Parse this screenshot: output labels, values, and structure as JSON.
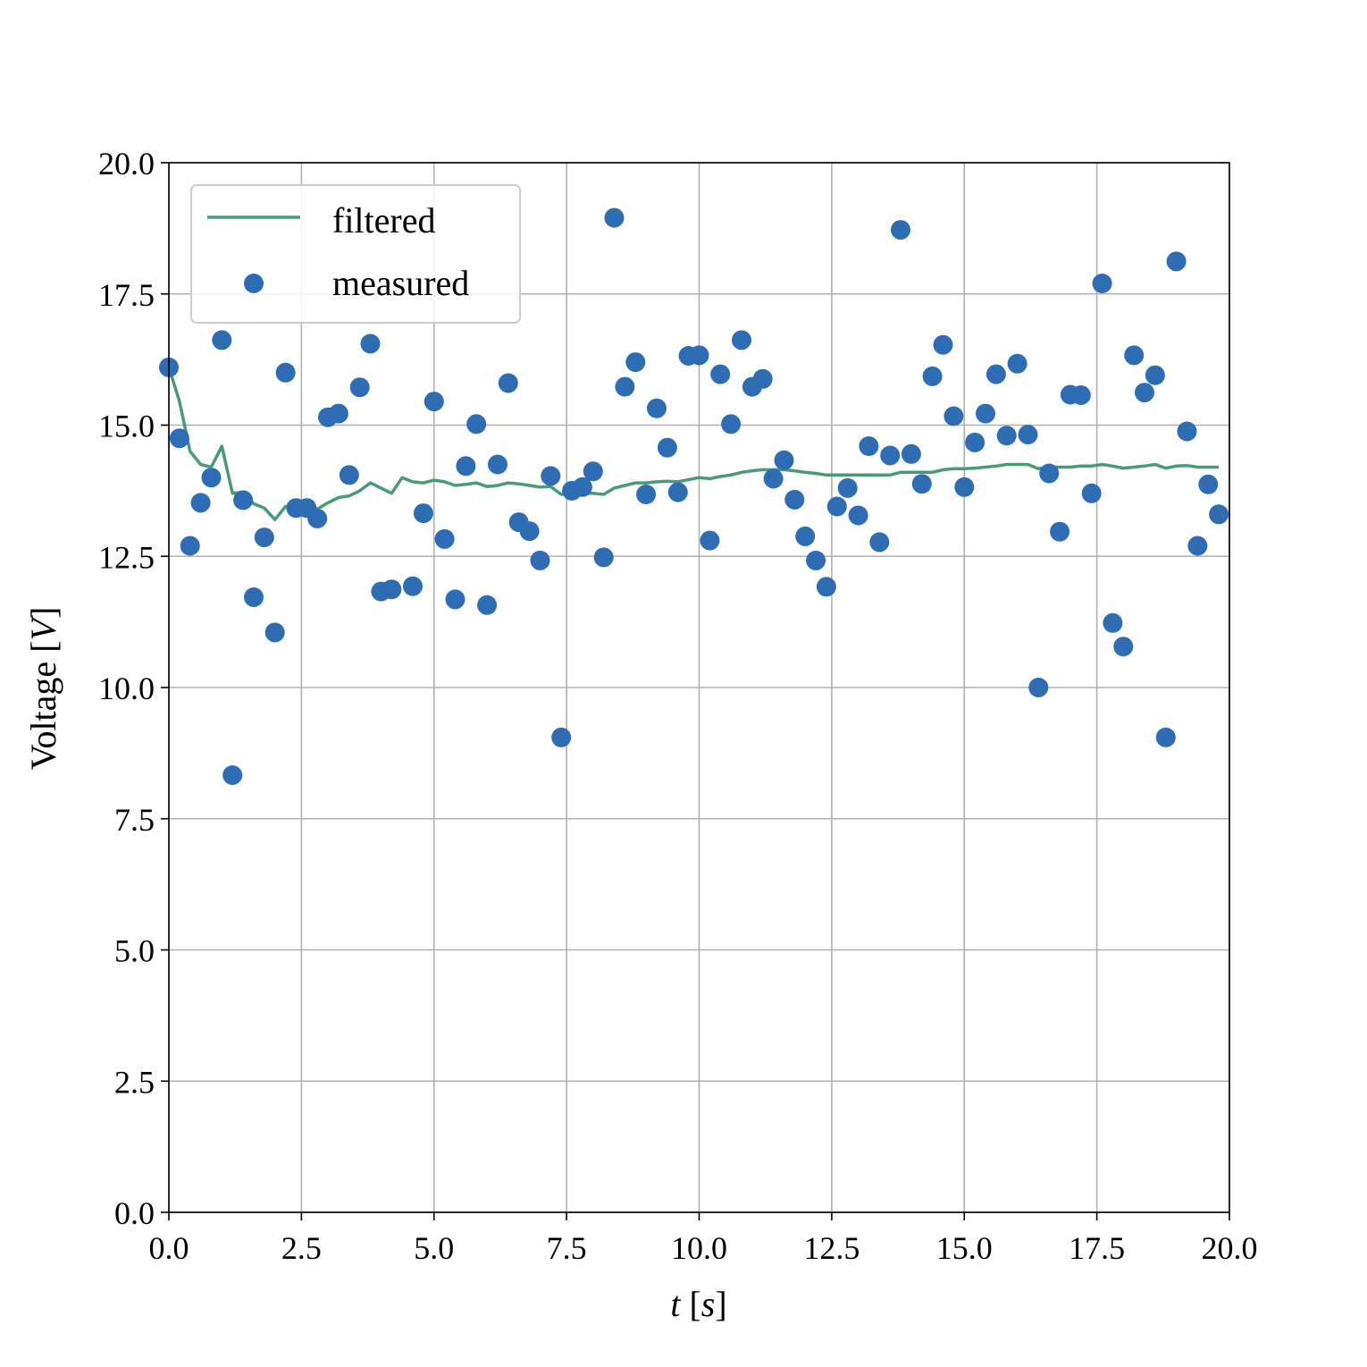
{
  "colors": {
    "filtered": "#4a9a78",
    "measured": "#2e6db4",
    "grid": "#b0b0b0",
    "axis": "#000000"
  },
  "legend": {
    "filtered_label": "filtered",
    "measured_label": "measured",
    "placement": "upper-left"
  },
  "chart_data": {
    "type": "line+scatter",
    "xlabel": "t [s]",
    "xlabel_var": "t",
    "xlabel_unit": "s",
    "ylabel": "Voltage [V]",
    "ylabel_text": "Voltage",
    "ylabel_unit": "V",
    "xlim": [
      0,
      20
    ],
    "ylim": [
      0,
      20
    ],
    "grid": true,
    "x_ticks": [
      "0.0",
      "2.5",
      "5.0",
      "7.5",
      "10.0",
      "12.5",
      "15.0",
      "17.5",
      "20.0"
    ],
    "y_ticks": [
      "0.0",
      "2.5",
      "5.0",
      "7.5",
      "10.0",
      "12.5",
      "15.0",
      "17.5",
      "20.0"
    ],
    "series": [
      {
        "name": "filtered",
        "kind": "line",
        "x": [
          0.0,
          0.2,
          0.4,
          0.6,
          0.8,
          1.0,
          1.2,
          1.4,
          1.6,
          1.8,
          2.0,
          2.2,
          2.4,
          2.6,
          2.8,
          3.0,
          3.2,
          3.4,
          3.6,
          3.8,
          4.0,
          4.2,
          4.4,
          4.6,
          4.8,
          5.0,
          5.2,
          5.4,
          5.6,
          5.8,
          6.0,
          6.2,
          6.4,
          6.6,
          6.8,
          7.0,
          7.2,
          7.4,
          7.6,
          7.8,
          8.0,
          8.2,
          8.4,
          8.6,
          8.8,
          9.0,
          9.2,
          9.4,
          9.6,
          9.8,
          10.0,
          10.2,
          10.4,
          10.6,
          10.8,
          11.0,
          11.2,
          11.4,
          11.6,
          11.8,
          12.0,
          12.2,
          12.4,
          12.6,
          12.8,
          13.0,
          13.2,
          13.4,
          13.6,
          13.8,
          14.0,
          14.2,
          14.4,
          14.6,
          14.8,
          15.0,
          15.2,
          15.4,
          15.6,
          15.8,
          16.0,
          16.2,
          16.4,
          16.6,
          16.8,
          17.0,
          17.2,
          17.4,
          17.6,
          17.8,
          18.0,
          18.2,
          18.4,
          18.6,
          18.8,
          19.0,
          19.2,
          19.4,
          19.6,
          19.8
        ],
        "y": [
          16.1,
          15.45,
          14.5,
          14.25,
          14.2,
          14.6,
          13.7,
          13.72,
          13.5,
          13.42,
          13.2,
          13.45,
          13.45,
          13.45,
          13.4,
          13.52,
          13.62,
          13.65,
          13.75,
          13.9,
          13.8,
          13.7,
          14.0,
          13.92,
          13.9,
          13.95,
          13.92,
          13.85,
          13.87,
          13.9,
          13.83,
          13.85,
          13.9,
          13.88,
          13.85,
          13.82,
          13.83,
          13.68,
          13.7,
          13.7,
          13.7,
          13.68,
          13.8,
          13.85,
          13.9,
          13.9,
          13.92,
          13.93,
          13.92,
          13.96,
          14.0,
          13.98,
          14.02,
          14.05,
          14.1,
          14.13,
          14.15,
          14.15,
          14.15,
          14.13,
          14.1,
          14.08,
          14.05,
          14.05,
          14.05,
          14.05,
          14.05,
          14.05,
          14.05,
          14.1,
          14.1,
          14.1,
          14.1,
          14.15,
          14.17,
          14.17,
          14.18,
          14.2,
          14.22,
          14.25,
          14.25,
          14.25,
          14.17,
          14.2,
          14.2,
          14.2,
          14.22,
          14.22,
          14.25,
          14.22,
          14.18,
          14.2,
          14.22,
          14.25,
          14.18,
          14.22,
          14.23,
          14.2,
          14.2,
          14.2
        ]
      },
      {
        "name": "measured",
        "kind": "scatter",
        "x": [
          0.0,
          0.2,
          0.4,
          0.6,
          0.8,
          1.0,
          1.2,
          1.4,
          1.6,
          1.8,
          2.0,
          2.2,
          2.4,
          2.6,
          2.8,
          3.0,
          3.2,
          3.4,
          3.6,
          3.8,
          4.0,
          4.2,
          4.6,
          4.8,
          5.0,
          5.2,
          5.4,
          5.6,
          5.8,
          6.0,
          6.2,
          6.4,
          6.6,
          6.8,
          7.0,
          7.2,
          7.4,
          7.6,
          7.8,
          8.0,
          8.2,
          8.4,
          8.6,
          8.8,
          9.0,
          9.2,
          9.4,
          9.6,
          9.8,
          10.0,
          10.2,
          10.4,
          10.6,
          10.8,
          11.0,
          11.2,
          11.4,
          11.6,
          11.8,
          12.0,
          12.2,
          12.4,
          12.6,
          12.8,
          13.0,
          13.2,
          13.4,
          13.6,
          13.8,
          14.0,
          14.2,
          14.4,
          14.6,
          14.8,
          15.0,
          15.2,
          15.4,
          15.6,
          15.8,
          16.0,
          16.2,
          16.4,
          16.6,
          16.8,
          17.0,
          17.2,
          17.4,
          17.6,
          17.8,
          18.0,
          18.2,
          18.4,
          18.6,
          18.8,
          19.0,
          19.2,
          19.4,
          19.6,
          19.8
        ],
        "y": [
          16.1,
          14.75,
          12.7,
          13.52,
          14.0,
          16.62,
          8.33,
          13.57,
          11.72,
          12.86,
          11.05,
          16.0,
          13.42,
          13.42,
          13.22,
          15.15,
          15.22,
          14.05,
          15.72,
          16.55,
          11.83,
          11.87,
          11.93,
          13.32,
          15.45,
          12.83,
          11.68,
          14.22,
          15.02,
          11.57,
          14.25,
          15.8,
          13.15,
          12.98,
          12.42,
          14.03,
          9.05,
          13.75,
          13.82,
          14.12,
          12.48,
          18.95,
          15.73,
          16.2,
          13.68,
          15.32,
          14.57,
          13.72,
          16.32,
          16.33,
          12.8,
          15.97,
          15.02,
          16.62,
          15.73,
          15.88,
          13.98,
          14.33,
          13.58,
          12.88,
          12.42,
          11.92,
          13.45,
          13.8,
          13.28,
          14.6,
          12.77,
          14.42,
          18.72,
          14.45,
          13.88,
          15.93,
          16.53,
          15.17,
          13.82,
          14.67,
          15.22,
          15.97,
          14.8,
          16.17,
          14.82,
          10.0,
          14.08,
          12.97,
          15.58,
          15.57,
          13.7,
          17.7,
          11.23,
          10.78,
          16.33,
          15.62,
          15.95,
          9.05,
          18.12,
          14.88,
          12.7,
          13.87,
          13.3
        ]
      }
    ]
  }
}
